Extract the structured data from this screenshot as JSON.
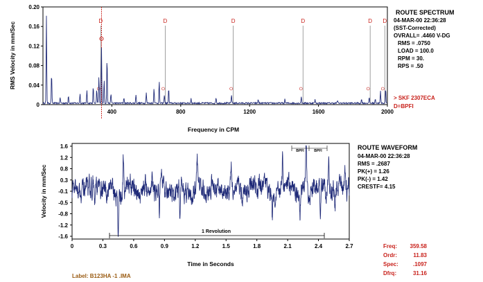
{
  "chart_data": [
    {
      "type": "line",
      "title": "ROUTE SPECTRUM",
      "xlabel": "Frequency in CPM",
      "ylabel": "RMS Velocity in mm/Sec",
      "xlim": [
        0,
        2000
      ],
      "ylim": [
        0,
        0.2
      ],
      "x_ticks": [
        "400",
        "800",
        "1200",
        "1600",
        "2000"
      ],
      "y_ticks": [
        "0.20",
        "0.16",
        "0.12",
        "0.08",
        "0.04",
        "0"
      ],
      "grid": false,
      "info_lines": [
        "04-MAR-00  22:36:28",
        "(SST-Corrected)",
        "OVRALL= .4460 V-DG",
        "RMS = .0750",
        "LOAD = 100.0",
        "RPM =  30.",
        "RPS =  .50"
      ],
      "fault_markers": {
        "label": "D",
        "x": [
          335,
          710,
          1105,
          1510,
          1900,
          1985
        ]
      },
      "legend": [
        "> SKF 2307ECA",
        "D=BPFI"
      ],
      "peaks": [
        {
          "x": 20,
          "y": 0.178
        },
        {
          "x": 50,
          "y": 0.062
        },
        {
          "x": 100,
          "y": 0.012
        },
        {
          "x": 148,
          "y": 0.016
        },
        {
          "x": 215,
          "y": 0.02
        },
        {
          "x": 255,
          "y": 0.026
        },
        {
          "x": 292,
          "y": 0.034
        },
        {
          "x": 312,
          "y": 0.028
        },
        {
          "x": 325,
          "y": 0.055
        },
        {
          "x": 340,
          "y": 0.115
        },
        {
          "x": 355,
          "y": 0.048
        },
        {
          "x": 372,
          "y": 0.095
        },
        {
          "x": 395,
          "y": 0.02
        },
        {
          "x": 470,
          "y": 0.012
        },
        {
          "x": 540,
          "y": 0.018
        },
        {
          "x": 600,
          "y": 0.022
        },
        {
          "x": 645,
          "y": 0.032
        },
        {
          "x": 675,
          "y": 0.045
        },
        {
          "x": 705,
          "y": 0.018
        },
        {
          "x": 730,
          "y": 0.03
        },
        {
          "x": 860,
          "y": 0.01
        },
        {
          "x": 1005,
          "y": 0.012
        },
        {
          "x": 1095,
          "y": 0.018
        },
        {
          "x": 1250,
          "y": 0.008
        },
        {
          "x": 1405,
          "y": 0.008
        },
        {
          "x": 1500,
          "y": 0.014
        },
        {
          "x": 1580,
          "y": 0.007
        },
        {
          "x": 1710,
          "y": 0.006
        },
        {
          "x": 1850,
          "y": 0.008
        },
        {
          "x": 1895,
          "y": 0.012
        },
        {
          "x": 1930,
          "y": 0.01
        },
        {
          "x": 1960,
          "y": 0.024
        },
        {
          "x": 1990,
          "y": 0.03
        }
      ]
    },
    {
      "type": "line",
      "title": "ROUTE WAVEFORM",
      "xlabel": "Time in Seconds",
      "ylabel": "Velocity in mm/Sec",
      "xlim": [
        0,
        2.7
      ],
      "ylim": [
        -1.65,
        1.65
      ],
      "x_ticks": [
        "0",
        "0.3",
        "0.6",
        "0.9",
        "1.2",
        "1.5",
        "1.8",
        "2.1",
        "2.4",
        "2.7"
      ],
      "y_ticks": [
        "1.6",
        "1.2",
        "0.8",
        "0.3",
        "-0.1",
        "-0.5",
        "-0.8",
        "-1.2",
        "-1.6"
      ],
      "grid": false,
      "info_lines": [
        "04-MAR-00  22:36:28",
        "RMS = .2687",
        "PK(+) = 1.26",
        "PK(-) = 1.42",
        "CRESTF= 4.15"
      ],
      "annotation": "1 Revolution",
      "bpfi_labels": [
        "BPFI",
        "BPFI"
      ],
      "events": [
        {
          "t": 0.22,
          "v": -0.75
        },
        {
          "t": 0.45,
          "v": -1.42
        },
        {
          "t": 0.5,
          "v": 1.05
        },
        {
          "t": 0.78,
          "v": 0.55
        },
        {
          "t": 0.85,
          "v": -0.85
        },
        {
          "t": 1.05,
          "v": -0.65
        },
        {
          "t": 1.22,
          "v": 0.72
        },
        {
          "t": 1.55,
          "v": 0.75
        },
        {
          "t": 1.82,
          "v": 0.5
        },
        {
          "t": 1.95,
          "v": -0.7
        },
        {
          "t": 2.05,
          "v": 0.95
        },
        {
          "t": 2.22,
          "v": -1.05
        },
        {
          "t": 2.28,
          "v": 1.26
        },
        {
          "t": 2.42,
          "v": -0.8
        },
        {
          "t": 2.5,
          "v": 1.05
        },
        {
          "t": 2.56,
          "v": -1.2
        },
        {
          "t": 2.66,
          "v": 0.6
        }
      ]
    }
  ],
  "label_line": "Label:  B123HA   -1  .IMA",
  "readout": {
    "freq_label": "Freq:",
    "freq_value": "359.58",
    "ordr_label": "Ordr:",
    "ordr_value": "11.83",
    "spec_label": "Spec:",
    "spec_value": ".1097",
    "dfrq_label": "Dfrq:",
    "dfrq_value": "31.16"
  },
  "colors": {
    "trace": "#1f2a78",
    "marker": "#c8201a",
    "axis": "#000000",
    "label": "#9a5b12"
  }
}
